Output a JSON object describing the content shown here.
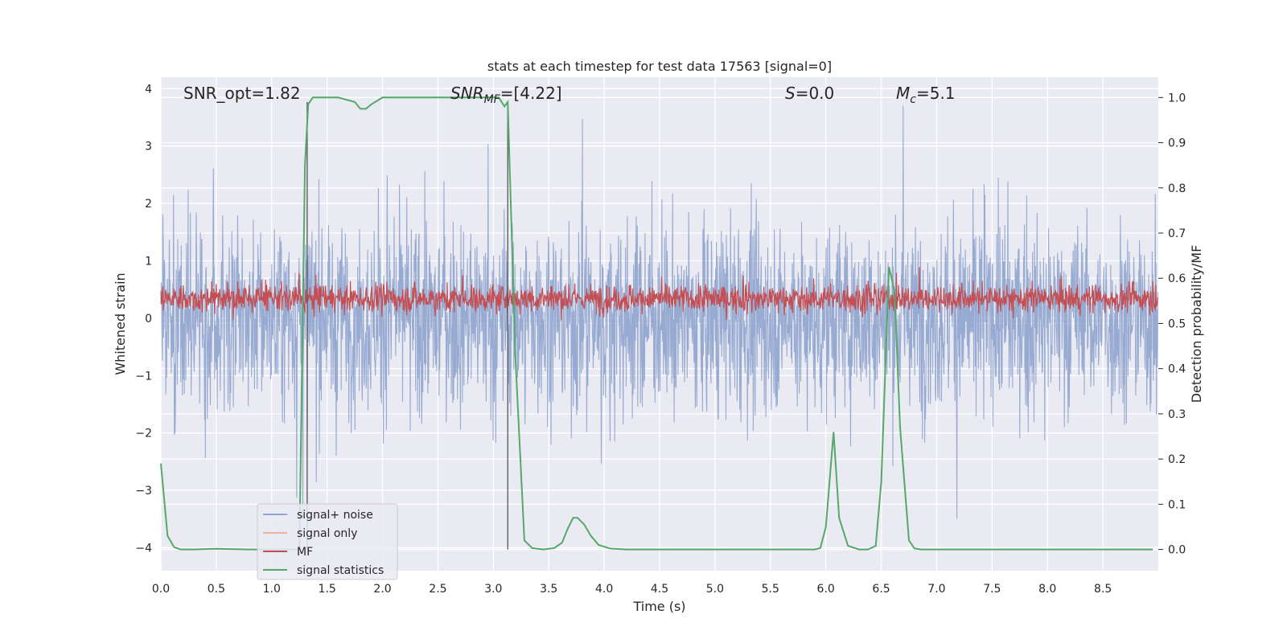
{
  "chart_data": {
    "type": "line",
    "title": "stats at each timestep for test data 17563 [signal=0]",
    "xlabel": "Time (s)",
    "ylabel": "Whitened strain",
    "ylabel_right": "Detection probability/MF",
    "xlim": [
      0.0,
      9.0
    ],
    "ylim": [
      -4.4,
      4.2
    ],
    "ylim_right": [
      -0.047,
      1.045
    ],
    "xticks": [
      "0.0",
      "0.5",
      "1.0",
      "1.5",
      "2.0",
      "2.5",
      "3.0",
      "3.5",
      "4.0",
      "4.5",
      "5.0",
      "5.5",
      "6.0",
      "6.5",
      "7.0",
      "7.5",
      "8.0",
      "8.5"
    ],
    "yticks_left": [
      "−4",
      "−3",
      "−2",
      "−1",
      "0",
      "1",
      "2",
      "3",
      "4"
    ],
    "yticks_right": [
      "0.0",
      "0.1",
      "0.2",
      "0.3",
      "0.4",
      "0.5",
      "0.6",
      "0.7",
      "0.8",
      "0.9",
      "1.0"
    ],
    "annotations": [
      {
        "label": "SNR_opt=1.82",
        "x": 0.2
      },
      {
        "label_main": "SNR",
        "label_sub": "MF",
        "label_rest": "=[4.22]",
        "x": 2.6
      },
      {
        "label_main": "S",
        "label_rest": "=0.0",
        "x": 5.6
      },
      {
        "label_main": "M",
        "label_sub": "c",
        "label_rest": "=5.1",
        "x": 6.6
      }
    ],
    "vlines": [
      1.32,
      3.13
    ],
    "legend": {
      "position": "lower-left",
      "entries": [
        {
          "label": "signal+ noise",
          "color": "#92a8d1"
        },
        {
          "label": "signal only",
          "color": "#eab39c"
        },
        {
          "label": "MF",
          "color": "#c44e52"
        },
        {
          "label": "signal statistics",
          "color": "#55a868"
        }
      ]
    },
    "series": [
      {
        "name": "signal+ noise",
        "axis": "left",
        "color": "#8ea3cd",
        "description": "whitened strain noise, approx range -3.5 to 3.7"
      },
      {
        "name": "signal only",
        "axis": "left",
        "color": "#eab39c",
        "values": []
      },
      {
        "name": "MF",
        "axis": "right",
        "color": "#c44e52",
        "description": "matched-filter output, approx range 0.49 to 0.62"
      },
      {
        "name": "signal statistics",
        "axis": "right",
        "color": "#55a868",
        "x": [
          0.0,
          0.06,
          0.12,
          0.18,
          0.3,
          0.5,
          0.8,
          1.0,
          1.2,
          1.25,
          1.3,
          1.33,
          1.37,
          1.42,
          1.6,
          1.75,
          1.8,
          1.85,
          1.9,
          2.0,
          2.3,
          2.6,
          2.9,
          3.05,
          3.1,
          3.13,
          3.2,
          3.28,
          3.35,
          3.45,
          3.55,
          3.62,
          3.67,
          3.72,
          3.76,
          3.82,
          3.88,
          3.95,
          4.05,
          4.2,
          4.5,
          5.0,
          5.5,
          5.8,
          5.9,
          5.95,
          6.0,
          6.07,
          6.12,
          6.2,
          6.3,
          6.38,
          6.45,
          6.5,
          6.57,
          6.62,
          6.67,
          6.75,
          6.8,
          6.86,
          7.0,
          7.5,
          8.0,
          8.5,
          8.95
        ],
        "values": [
          0.19,
          0.03,
          0.005,
          0.0,
          0.0,
          0.0015,
          0.0,
          0.0,
          0.0,
          0.0,
          0.85,
          0.985,
          1.0,
          1.0,
          1.0,
          0.99,
          0.975,
          0.975,
          0.985,
          1.0,
          1.0,
          1.0,
          1.0,
          1.0,
          0.98,
          0.99,
          0.42,
          0.02,
          0.003,
          0.0,
          0.003,
          0.015,
          0.045,
          0.07,
          0.07,
          0.055,
          0.03,
          0.01,
          0.002,
          0.0,
          0.0,
          0.0,
          0.0,
          0.0,
          0.0,
          0.003,
          0.05,
          0.26,
          0.07,
          0.008,
          0.0,
          0.0,
          0.008,
          0.15,
          0.625,
          0.57,
          0.27,
          0.02,
          0.002,
          0.0,
          0.0,
          0.0,
          0.0,
          0.0,
          0.0
        ]
      }
    ]
  }
}
